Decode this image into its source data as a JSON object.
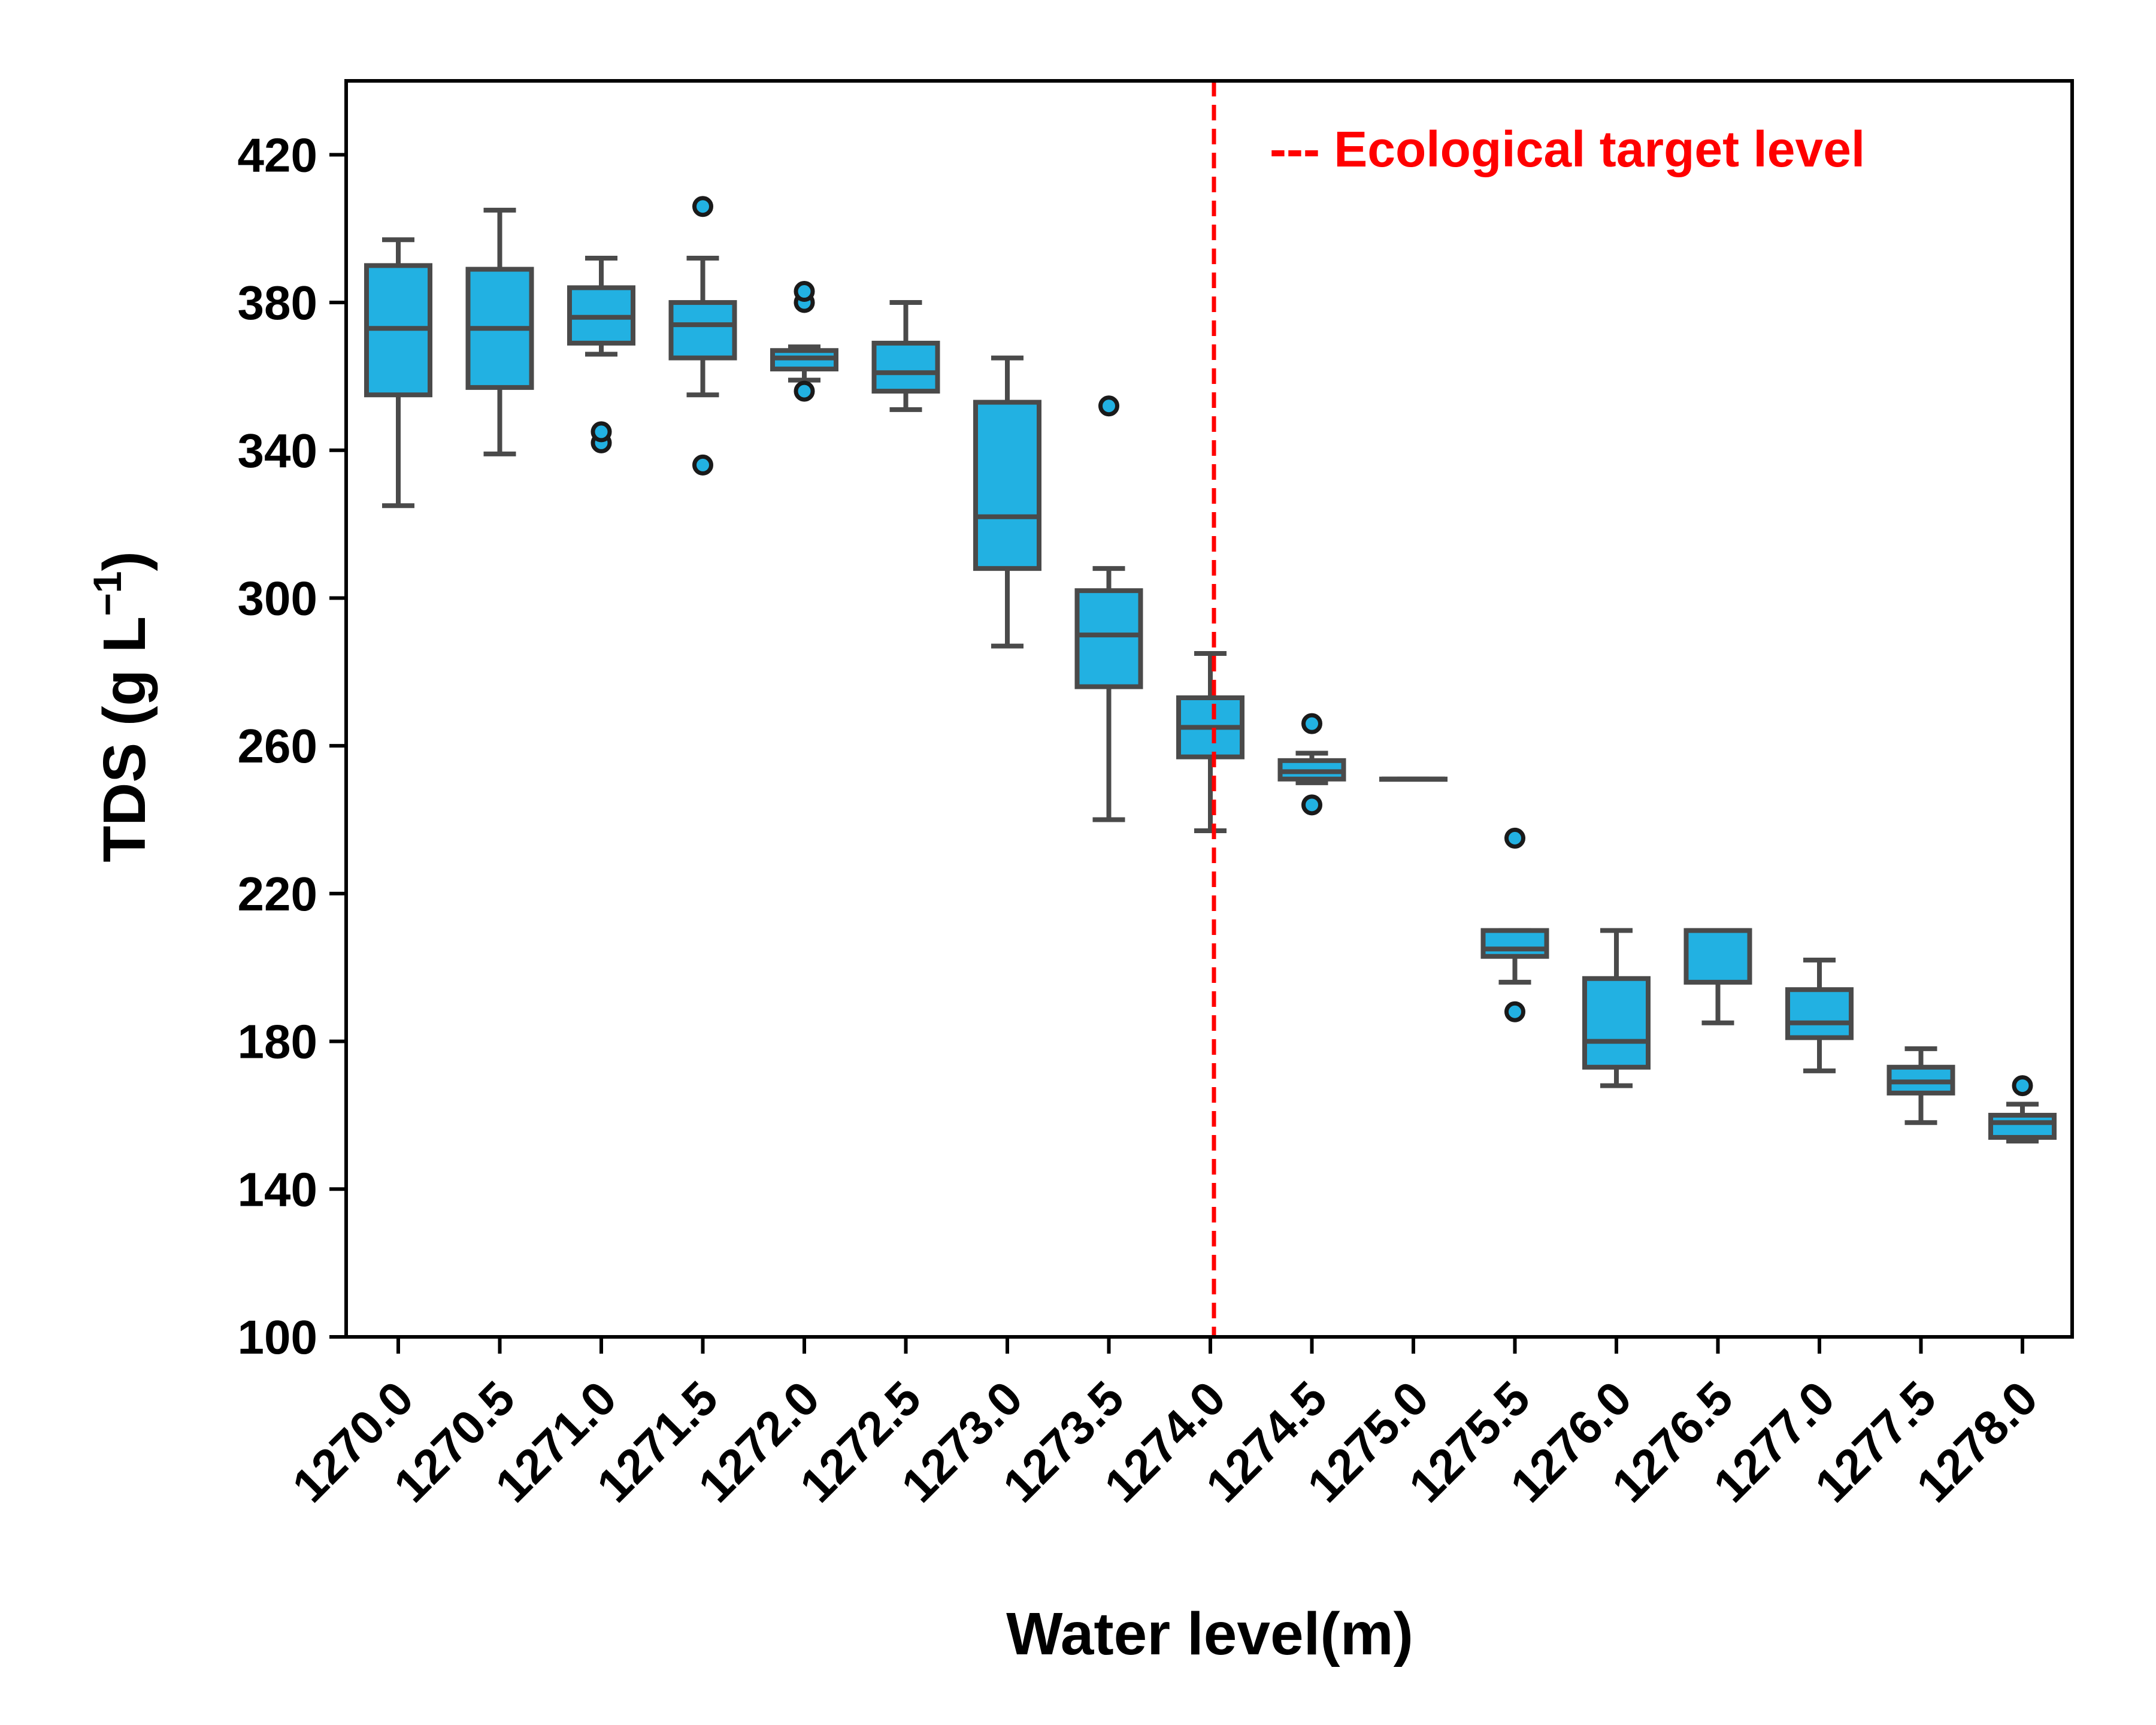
{
  "chart_data": {
    "type": "box",
    "title": "",
    "xlabel": "Water level(m)",
    "ylabel_main": "TDS (g L",
    "ylabel_sup": "−1",
    "ylabel_close": ")",
    "ylim": [
      100,
      440
    ],
    "yticks": [
      100,
      140,
      180,
      220,
      260,
      300,
      340,
      380,
      420
    ],
    "categories": [
      "1270.0",
      "1270.5",
      "1271.0",
      "1271.5",
      "1272.0",
      "1272.5",
      "1273.0",
      "1273.5",
      "1274.0",
      "1274.5",
      "1275.0",
      "1275.5",
      "1276.0",
      "1276.5",
      "1277.0",
      "1277.5",
      "1278.0"
    ],
    "boxes": [
      {
        "whislo": 325,
        "q1": 355,
        "med": 373,
        "q3": 390,
        "whishi": 397,
        "fliers": []
      },
      {
        "whislo": 339,
        "q1": 357,
        "med": 373,
        "q3": 389,
        "whishi": 405,
        "fliers": []
      },
      {
        "whislo": 366,
        "q1": 369,
        "med": 376,
        "q3": 384,
        "whishi": 392,
        "fliers": [
          342,
          345
        ]
      },
      {
        "whislo": 355,
        "q1": 365,
        "med": 374,
        "q3": 380,
        "whishi": 392,
        "fliers": [
          336,
          406
        ]
      },
      {
        "whislo": 359,
        "q1": 362,
        "med": 365,
        "q3": 367,
        "whishi": 368,
        "fliers": [
          356,
          380,
          383
        ]
      },
      {
        "whislo": 351,
        "q1": 356,
        "med": 361,
        "q3": 369,
        "whishi": 380,
        "fliers": []
      },
      {
        "whislo": 287,
        "q1": 308,
        "med": 322,
        "q3": 353,
        "whishi": 365,
        "fliers": []
      },
      {
        "whislo": 240,
        "q1": 276,
        "med": 290,
        "q3": 302,
        "whishi": 308,
        "fliers": [
          352
        ]
      },
      {
        "whislo": 237,
        "q1": 257,
        "med": 265,
        "q3": 273,
        "whishi": 285,
        "fliers": []
      },
      {
        "whislo": 250,
        "q1": 251,
        "med": 253,
        "q3": 256,
        "whishi": 258,
        "fliers": [
          244,
          266
        ]
      },
      {
        "whislo": 251,
        "q1": 251,
        "med": 251,
        "q3": 251,
        "whishi": 251,
        "fliers": []
      },
      {
        "whislo": 196,
        "q1": 203,
        "med": 205,
        "q3": 210,
        "whishi": 210,
        "fliers": [
          188,
          235
        ]
      },
      {
        "whislo": 168,
        "q1": 173,
        "med": 180,
        "q3": 197,
        "whishi": 210,
        "fliers": []
      },
      {
        "whislo": 185,
        "q1": 196,
        "med": 210,
        "q3": 210,
        "whishi": 210,
        "fliers": []
      },
      {
        "whislo": 172,
        "q1": 181,
        "med": 185,
        "q3": 194,
        "whishi": 202,
        "fliers": []
      },
      {
        "whislo": 158,
        "q1": 166,
        "med": 169,
        "q3": 173,
        "whishi": 178,
        "fliers": []
      },
      {
        "whislo": 153,
        "q1": 154,
        "med": 158,
        "q3": 160,
        "whishi": 163,
        "fliers": [
          168
        ]
      }
    ],
    "reference_line": {
      "x": 1274.0,
      "label": "--- Ecological target level",
      "color": "#ff0000",
      "style": "dashed"
    },
    "box_fill": "#22b1e2",
    "box_edge": "#4a4a4a",
    "legend_placement": "top-right",
    "grid": false
  }
}
